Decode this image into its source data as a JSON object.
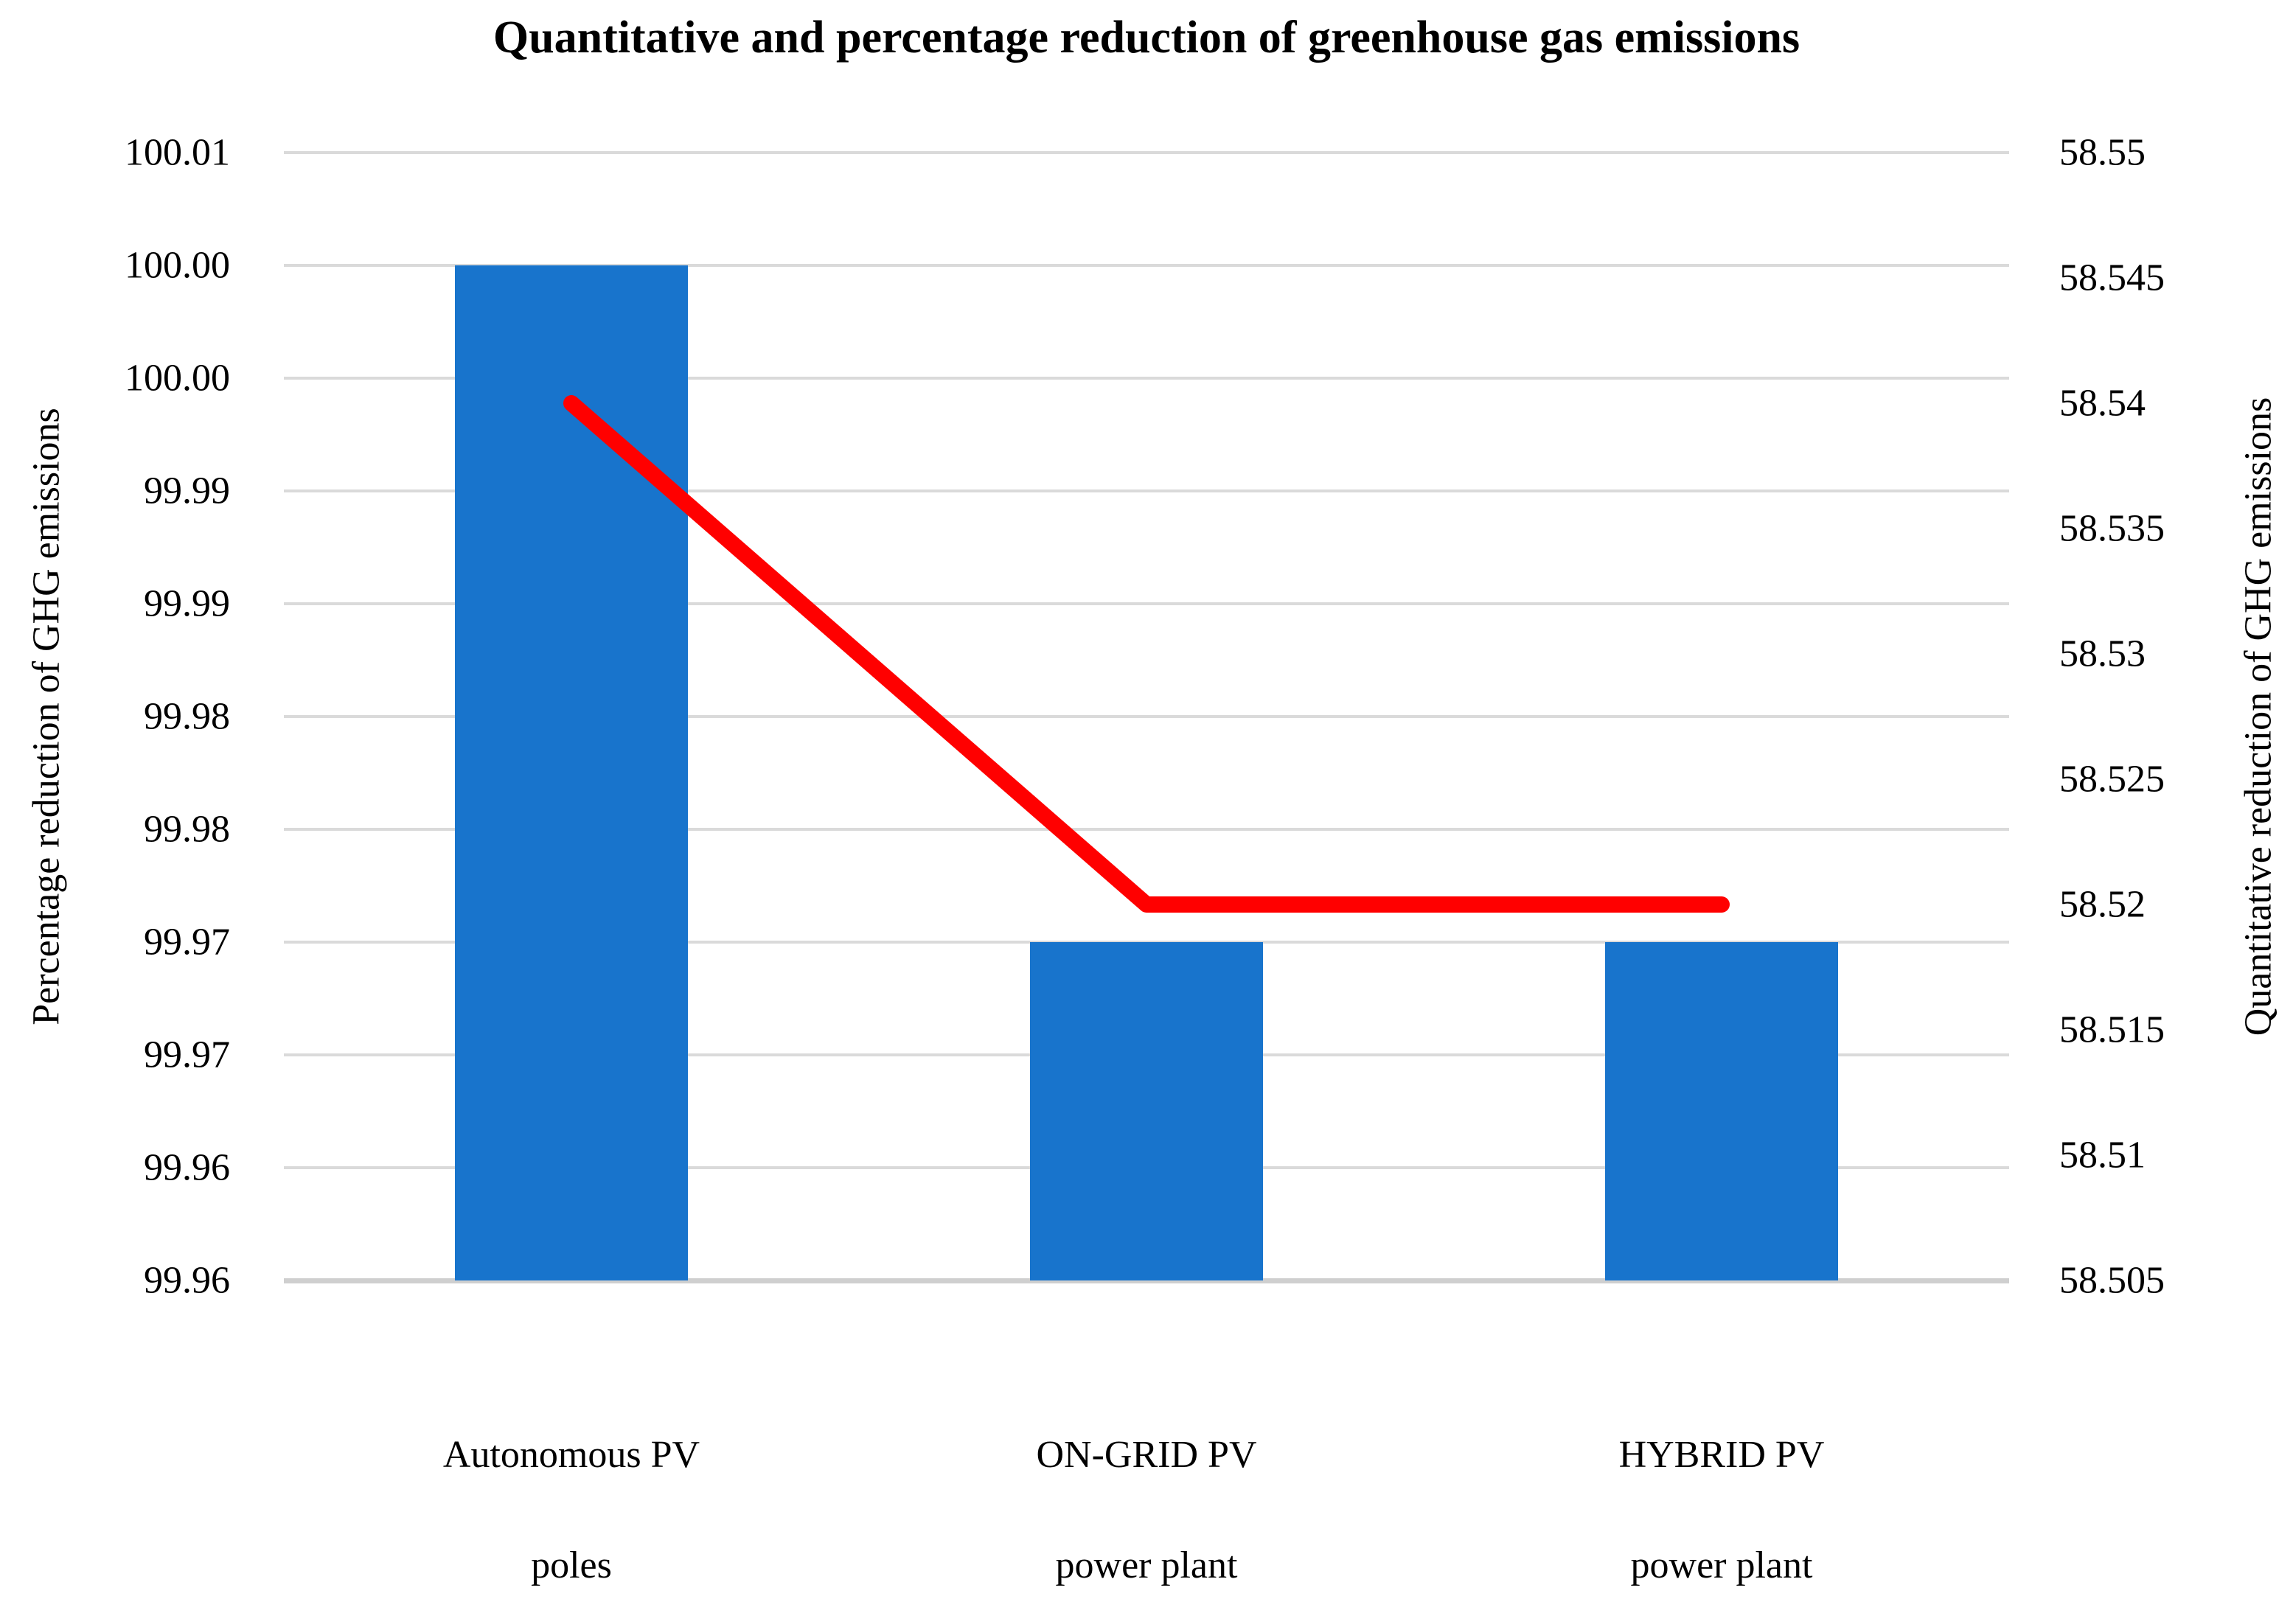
{
  "title": "Quantitative and percentage reduction of greenhouse gas emissions",
  "chart_data": {
    "type": "bar",
    "subtype": "bar-line-combo-dual-axis",
    "title": "Quantitative and percentage reduction of greenhouse gas emissions",
    "categories": [
      "Autonomous PV\npoles",
      "ON-GRID PV\npower plant",
      "HYBRID PV\npower plant"
    ],
    "series": [
      {
        "name": "Percentage reduction of GHG emissions",
        "type": "bar",
        "axis": "left",
        "values": [
          100.0,
          99.97,
          99.97
        ],
        "color": "#1874CC"
      },
      {
        "name": "Quantitative reduction of GHG emissions",
        "type": "line",
        "axis": "right",
        "values": [
          58.54,
          58.52,
          58.52
        ],
        "color": "#FF0000"
      }
    ],
    "left_axis": {
      "label": "Percentage reduction of GHG emissions",
      "min": 99.96,
      "max": 100.01,
      "step": 0.005,
      "tick_labels": [
        "100.01",
        "100.00",
        "100.00",
        "99.99",
        "99.99",
        "99.98",
        "99.98",
        "99.97",
        "99.97",
        "99.96",
        "99.96"
      ]
    },
    "right_axis": {
      "label": "Quantitative reduction of GHG emissions",
      "min": 58.505,
      "max": 58.55,
      "step": 0.005,
      "tick_labels": [
        "58.55",
        "58.545",
        "58.54",
        "58.535",
        "58.53",
        "58.525",
        "58.52",
        "58.515",
        "58.51",
        "58.505"
      ]
    },
    "grid": true,
    "legend": false
  },
  "colors": {
    "bar": "#1874CC",
    "line": "#FF0000",
    "gridline": "#DADADA",
    "baseline": "#CFCFCF",
    "text": "#000000",
    "background": "#FFFFFF"
  }
}
